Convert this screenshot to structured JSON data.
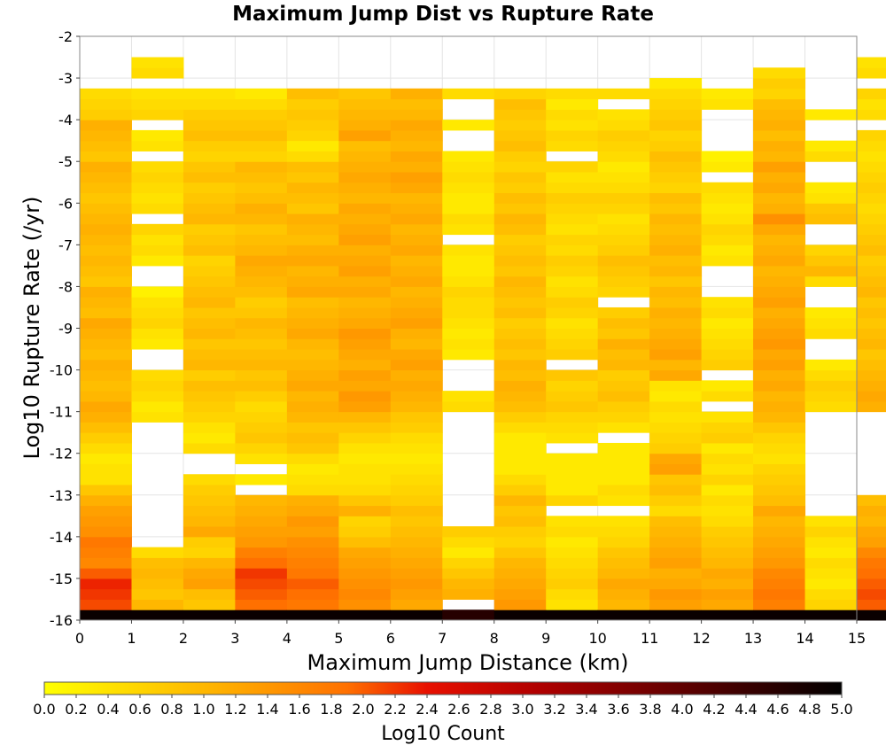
{
  "chart_data": {
    "type": "heatmap",
    "title": "Maximum Jump Dist vs Rupture Rate",
    "xlabel": "Maximum Jump Distance (km)",
    "ylabel": "Log10 Rupture Rate (/yr)",
    "colorbar_label": "Log10 Count",
    "xlim": [
      0,
      15
    ],
    "ylim": [
      -16,
      -2
    ],
    "x_ticks": [
      "0",
      "1",
      "2",
      "3",
      "4",
      "5",
      "6",
      "7",
      "8",
      "9",
      "10",
      "11",
      "12",
      "13",
      "14",
      "15"
    ],
    "y_ticks": [
      "-2",
      "-3",
      "-4",
      "-5",
      "-6",
      "-7",
      "-8",
      "-9",
      "-10",
      "-11",
      "-12",
      "-13",
      "-14",
      "-15",
      "-16"
    ],
    "colorbar_ticks": [
      "0.0",
      "0.2",
      "0.4",
      "0.6",
      "0.8",
      "1.0",
      "1.2",
      "1.4",
      "1.6",
      "1.8",
      "2.0",
      "2.2",
      "2.4",
      "2.6",
      "2.8",
      "3.0",
      "3.2",
      "3.4",
      "3.6",
      "3.8",
      "4.0",
      "4.2",
      "4.4",
      "4.6",
      "4.8",
      "5.0"
    ],
    "colorbar_range": [
      0,
      5
    ],
    "colormap": "yellow-orange-red-black",
    "grid": true,
    "cell_width_km": 1,
    "cell_height_log10": 0.25,
    "row_y_start": -16,
    "columns": [
      [
        4.9,
        2.1,
        2.2,
        2.3,
        2.0,
        1.6,
        1.7,
        1.8,
        1.5,
        1.4,
        1.3,
        1.1,
        0.8,
        0.4,
        0.4,
        0.3,
        0.5,
        0.7,
        0.9,
        1.1,
        1.2,
        1.0,
        0.9,
        1.0,
        1.1,
        0.9,
        1.0,
        1.1,
        1.2,
        0.9,
        1.0,
        1.1,
        0.8,
        0.9,
        1.0,
        0.9,
        1.0,
        1.1,
        1.0,
        0.9,
        0.8,
        0.9,
        1.0,
        1.1,
        0.8,
        0.9,
        1.0,
        1.1,
        0.7,
        0.6,
        0.5
      ],
      [
        4.9,
        1.0,
        0.8,
        0.9,
        1.0,
        0.9,
        0.5,
        null,
        null,
        null,
        null,
        null,
        null,
        null,
        null,
        null,
        null,
        null,
        null,
        0.4,
        0.3,
        0.5,
        0.6,
        0.5,
        null,
        null,
        0.3,
        0.4,
        0.6,
        0.5,
        0.4,
        0.2,
        null,
        null,
        0.3,
        0.5,
        0.4,
        0.6,
        null,
        0.5,
        0.4,
        0.5,
        0.6,
        0.5,
        null,
        0.4,
        0.3,
        null,
        0.6,
        0.5,
        0.4,
        null,
        0.5,
        0.4
      ],
      [
        4.9,
        0.8,
        0.9,
        1.3,
        1.2,
        1.0,
        0.6,
        0.7,
        1.2,
        1.0,
        0.9,
        0.8,
        0.7,
        0.5,
        null,
        null,
        0.5,
        0.3,
        0.4,
        0.6,
        0.7,
        0.8,
        0.9,
        0.7,
        1.0,
        0.9,
        0.8,
        1.0,
        0.9,
        0.8,
        1.0,
        0.9,
        0.8,
        0.7,
        0.6,
        0.9,
        0.8,
        0.7,
        1.0,
        0.9,
        0.8,
        0.7,
        0.9,
        0.8,
        0.6,
        0.7,
        0.9,
        0.8,
        0.7,
        0.5,
        0.4
      ],
      [
        4.9,
        1.9,
        2.0,
        2.1,
        2.2,
        1.9,
        1.7,
        1.4,
        1.3,
        1.2,
        1.1,
        1.0,
        null,
        0.3,
        null,
        0.4,
        0.6,
        0.8,
        0.7,
        0.6,
        0.5,
        0.7,
        0.9,
        0.8,
        1.0,
        0.9,
        0.8,
        0.9,
        1.0,
        0.8,
        0.7,
        0.9,
        1.0,
        1.1,
        1.2,
        1.0,
        0.9,
        0.8,
        1.0,
        1.1,
        0.9,
        0.8,
        0.9,
        1.0,
        0.6,
        0.7,
        0.9,
        0.8,
        0.7,
        0.5,
        0.3
      ],
      [
        4.9,
        1.8,
        1.9,
        2.0,
        1.8,
        1.7,
        1.6,
        1.5,
        1.3,
        1.4,
        1.2,
        1.1,
        0.5,
        0.4,
        0.3,
        0.5,
        0.8,
        0.9,
        0.8,
        1.0,
        1.1,
        1.0,
        1.2,
        1.1,
        1.0,
        0.9,
        1.0,
        1.2,
        1.1,
        1.0,
        0.9,
        1.2,
        1.1,
        1.0,
        1.2,
        1.1,
        0.9,
        1.0,
        1.1,
        0.8,
        0.9,
        1.0,
        0.8,
        0.9,
        0.5,
        0.3,
        0.6,
        0.7,
        0.8,
        0.7,
        0.9
      ],
      [
        4.9,
        1.5,
        1.6,
        1.5,
        1.4,
        1.3,
        1.2,
        0.9,
        0.7,
        0.6,
        1.1,
        0.8,
        0.5,
        0.4,
        0.4,
        0.3,
        0.4,
        0.6,
        0.8,
        1.0,
        1.3,
        1.4,
        1.2,
        1.3,
        1.1,
        1.2,
        1.3,
        1.4,
        1.2,
        1.1,
        1.0,
        1.2,
        1.1,
        1.3,
        1.2,
        1.1,
        1.3,
        1.2,
        1.1,
        1.2,
        1.0,
        1.1,
        1.2,
        1.1,
        1.0,
        0.9,
        1.3,
        1.1,
        1.0,
        0.9,
        0.8
      ],
      [
        4.9,
        1.2,
        1.3,
        1.4,
        1.3,
        1.2,
        1.1,
        1.0,
        0.9,
        0.8,
        0.9,
        0.7,
        0.6,
        0.5,
        0.4,
        0.3,
        0.4,
        0.5,
        0.7,
        0.8,
        1.0,
        1.1,
        1.2,
        1.1,
        1.3,
        1.2,
        1.0,
        1.1,
        1.3,
        1.2,
        1.1,
        1.0,
        1.2,
        1.1,
        1.0,
        1.2,
        1.1,
        1.0,
        1.2,
        1.1,
        1.0,
        1.2,
        1.3,
        1.1,
        1.2,
        1.0,
        1.1,
        1.2,
        1.0,
        0.9,
        1.1
      ],
      [
        4.6,
        null,
        1.1,
        1.0,
        0.8,
        0.6,
        0.3,
        0.5,
        0.7,
        null,
        null,
        null,
        null,
        null,
        null,
        null,
        null,
        null,
        null,
        null,
        0.5,
        0.4,
        null,
        null,
        null,
        0.3,
        0.4,
        0.3,
        0.4,
        0.5,
        0.5,
        0.6,
        0.4,
        0.3,
        0.3,
        0.4,
        null,
        0.4,
        0.5,
        0.3,
        0.3,
        0.4,
        0.5,
        0.4,
        0.3,
        null,
        null,
        0.3,
        null,
        null,
        0.5
      ],
      [
        4.9,
        1.4,
        1.3,
        1.2,
        1.1,
        1.0,
        0.8,
        0.6,
        0.7,
        0.9,
        0.8,
        1.0,
        0.7,
        0.5,
        0.3,
        0.3,
        0.3,
        0.3,
        0.5,
        0.7,
        0.9,
        1.0,
        1.1,
        0.9,
        1.0,
        0.8,
        0.9,
        0.8,
        0.7,
        0.9,
        0.8,
        0.9,
        1.0,
        0.8,
        0.9,
        0.8,
        0.7,
        0.9,
        1.0,
        0.8,
        0.9,
        0.7,
        0.8,
        0.6,
        0.7,
        0.9,
        0.8,
        0.7,
        0.8,
        0.9,
        0.6
      ],
      [
        4.9,
        0.4,
        0.5,
        0.7,
        0.6,
        0.5,
        0.4,
        0.3,
        0.5,
        0.4,
        null,
        0.6,
        0.3,
        0.3,
        0.3,
        0.3,
        null,
        0.4,
        0.5,
        0.6,
        0.8,
        0.7,
        0.6,
        0.8,
        null,
        0.7,
        0.6,
        0.5,
        0.4,
        0.6,
        0.7,
        0.5,
        0.4,
        0.6,
        0.7,
        0.5,
        0.6,
        0.4,
        0.5,
        0.6,
        0.7,
        0.5,
        0.4,
        0.6,
        null,
        0.5,
        0.6,
        0.4,
        0.5,
        0.3,
        0.5
      ],
      [
        4.9,
        1.0,
        1.1,
        1.2,
        1.0,
        0.9,
        0.8,
        0.6,
        0.5,
        0.4,
        null,
        0.4,
        0.5,
        0.3,
        0.3,
        0.3,
        0.3,
        null,
        0.4,
        0.6,
        0.7,
        0.9,
        0.8,
        0.7,
        1.0,
        0.9,
        1.1,
        0.8,
        0.9,
        0.7,
        null,
        0.6,
        0.7,
        0.8,
        0.9,
        0.7,
        0.6,
        0.5,
        0.4,
        0.6,
        0.7,
        0.5,
        0.4,
        0.3,
        0.5,
        0.6,
        0.7,
        0.5,
        0.4,
        null,
        0.5
      ],
      [
        4.9,
        1.3,
        1.4,
        1.2,
        1.1,
        1.3,
        1.2,
        1.1,
        1.0,
        0.9,
        0.5,
        0.7,
        0.9,
        0.8,
        1.3,
        1.2,
        0.7,
        0.6,
        0.5,
        0.4,
        0.5,
        0.3,
        0.4,
        1.2,
        1.0,
        1.3,
        1.2,
        1.1,
        1.0,
        1.1,
        0.9,
        1.0,
        0.8,
        1.0,
        0.9,
        1.1,
        1.0,
        0.9,
        1.0,
        0.8,
        0.9,
        0.6,
        0.7,
        0.8,
        0.9,
        0.7,
        0.6,
        0.8,
        0.7,
        0.6,
        0.5,
        0.3
      ],
      [
        4.9,
        1.2,
        1.3,
        1.1,
        1.2,
        1.0,
        0.9,
        0.8,
        0.7,
        0.5,
        0.4,
        0.5,
        0.3,
        0.6,
        0.4,
        0.5,
        0.3,
        0.7,
        0.6,
        0.4,
        null,
        0.5,
        0.3,
        null,
        0.7,
        0.6,
        0.5,
        0.4,
        0.3,
        0.5,
        0.4,
        null,
        null,
        null,
        0.4,
        0.3,
        0.5,
        0.6,
        0.4,
        0.3,
        0.4,
        0.5,
        null,
        0.3,
        0.2,
        null,
        null,
        null,
        null,
        0.4,
        0.3
      ],
      [
        4.9,
        1.7,
        1.8,
        1.7,
        1.6,
        1.4,
        1.3,
        1.2,
        1.1,
        1.0,
        1.2,
        0.9,
        0.8,
        0.7,
        0.6,
        0.4,
        0.5,
        0.6,
        0.8,
        1.0,
        1.1,
        1.0,
        1.2,
        1.1,
        1.3,
        1.2,
        1.4,
        1.3,
        1.2,
        1.1,
        1.3,
        1.2,
        1.1,
        1.0,
        1.2,
        1.1,
        1.0,
        1.2,
        1.5,
        1.1,
        1.0,
        1.2,
        1.1,
        1.3,
        1.0,
        1.1,
        0.9,
        1.1,
        1.0,
        0.9,
        0.6,
        0.7,
        0.5
      ],
      [
        4.9,
        0.6,
        0.5,
        0.3,
        0.4,
        0.5,
        0.3,
        0.4,
        0.6,
        0.4,
        null,
        null,
        null,
        null,
        null,
        null,
        null,
        null,
        null,
        null,
        0.5,
        0.6,
        0.7,
        0.5,
        0.3,
        null,
        null,
        0.5,
        0.4,
        0.3,
        null,
        null,
        0.5,
        1.0,
        0.8,
        0.6,
        null,
        null,
        0.9,
        0.8,
        0.4,
        0.3,
        null,
        null,
        0.5,
        0.3,
        null,
        null,
        0.3,
        null
      ],
      [
        4.9,
        2.0,
        2.1,
        2.0,
        1.9,
        1.8,
        1.6,
        1.3,
        1.2,
        1.0,
        1.1,
        0.9,
        null,
        null,
        null,
        null,
        null,
        null,
        null,
        null,
        1.1,
        1.2,
        1.1,
        1.0,
        0.9,
        0.8,
        1.0,
        0.9,
        0.8,
        0.9,
        0.8,
        1.0,
        0.9,
        0.8,
        0.7,
        0.9,
        0.8,
        0.7,
        0.6,
        0.5,
        0.6,
        0.7,
        0.6,
        0.5,
        0.4,
        0.5,
        0.6,
        null,
        0.5,
        0.4,
        0.6,
        null,
        0.5,
        0.4
      ]
    ]
  }
}
